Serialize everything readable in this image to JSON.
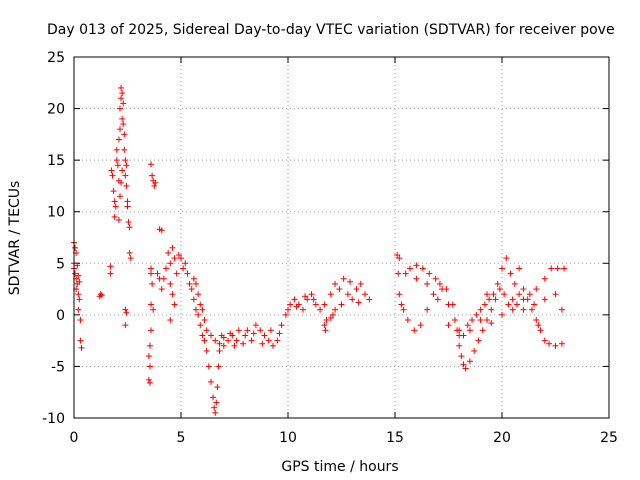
{
  "chart_data": {
    "type": "scatter",
    "title": "Day 013 of 2025, Sidereal Day-to-day VTEC variation (SDTVAR) for receiver pove",
    "xlabel": "GPS time / hours",
    "ylabel": "SDTVAR / TECUs",
    "xlim": [
      0,
      25
    ],
    "ylim": [
      -10,
      25
    ],
    "xticks": [
      0,
      5,
      10,
      15,
      20,
      25
    ],
    "yticks": [
      -10,
      -5,
      0,
      5,
      10,
      15,
      20,
      25
    ],
    "grid": true,
    "marker": "+",
    "color": "#ff0000",
    "series": [
      {
        "name": "SDTVAR",
        "points": [
          [
            0.0,
            7.0
          ],
          [
            0.05,
            6.5
          ],
          [
            0.1,
            6.0
          ],
          [
            0.0,
            5.0
          ],
          [
            0.05,
            4.0
          ],
          [
            0.1,
            3.5
          ],
          [
            0.15,
            3.0
          ],
          [
            0.1,
            2.5
          ],
          [
            0.2,
            2.0
          ],
          [
            0.25,
            1.5
          ],
          [
            0.2,
            0.5
          ],
          [
            0.3,
            -0.5
          ],
          [
            0.3,
            -2.5
          ],
          [
            0.35,
            -3.2
          ],
          [
            0.0,
            4.5
          ],
          [
            0.15,
            4.8
          ],
          [
            0.2,
            3.8
          ],
          [
            0.25,
            3.2
          ],
          [
            1.2,
            1.8
          ],
          [
            1.25,
            2.0
          ],
          [
            1.3,
            1.9
          ],
          [
            1.7,
            4.7
          ],
          [
            1.7,
            4.0
          ],
          [
            1.75,
            14.0
          ],
          [
            1.8,
            13.5
          ],
          [
            1.85,
            12.0
          ],
          [
            1.9,
            11.0
          ],
          [
            1.9,
            9.5
          ],
          [
            1.95,
            10.5
          ],
          [
            2.0,
            15.0
          ],
          [
            2.0,
            16.0
          ],
          [
            2.05,
            14.5
          ],
          [
            2.1,
            13.0
          ],
          [
            2.1,
            17.0
          ],
          [
            2.15,
            18.0
          ],
          [
            2.15,
            20.0
          ],
          [
            2.2,
            21.0
          ],
          [
            2.2,
            22.0
          ],
          [
            2.25,
            21.5
          ],
          [
            2.25,
            19.0
          ],
          [
            2.3,
            20.5
          ],
          [
            2.3,
            18.5
          ],
          [
            2.35,
            17.5
          ],
          [
            2.35,
            16.0
          ],
          [
            2.4,
            15.0
          ],
          [
            2.4,
            13.5
          ],
          [
            2.45,
            14.5
          ],
          [
            2.45,
            12.5
          ],
          [
            2.5,
            11.0
          ],
          [
            2.5,
            10.5
          ],
          [
            2.55,
            9.0
          ],
          [
            2.6,
            8.5
          ],
          [
            2.6,
            6.0
          ],
          [
            2.65,
            5.5
          ],
          [
            2.1,
            9.2
          ],
          [
            2.15,
            11.5
          ],
          [
            2.2,
            12.8
          ],
          [
            2.25,
            14.0
          ],
          [
            2.4,
            0.5
          ],
          [
            2.45,
            0.2
          ],
          [
            2.4,
            -1.0
          ],
          [
            3.6,
            14.6
          ],
          [
            3.65,
            13.5
          ],
          [
            3.7,
            13.0
          ],
          [
            3.75,
            12.5
          ],
          [
            3.8,
            12.8
          ],
          [
            3.6,
            4.5
          ],
          [
            3.6,
            4.0
          ],
          [
            3.65,
            3.0
          ],
          [
            3.6,
            1.0
          ],
          [
            3.6,
            -1.5
          ],
          [
            3.55,
            -3.0
          ],
          [
            3.5,
            -4.0
          ],
          [
            3.55,
            -5.0
          ],
          [
            3.5,
            -6.3
          ],
          [
            3.55,
            -6.6
          ],
          [
            3.7,
            0.5
          ],
          [
            4.0,
            8.3
          ],
          [
            4.1,
            8.2
          ],
          [
            3.9,
            4.0
          ],
          [
            4.0,
            3.5
          ],
          [
            4.1,
            2.5
          ],
          [
            4.2,
            3.5
          ],
          [
            4.3,
            4.5
          ],
          [
            4.4,
            6.0
          ],
          [
            4.5,
            5.0
          ],
          [
            4.6,
            6.5
          ],
          [
            4.7,
            5.5
          ],
          [
            4.8,
            4.0
          ],
          [
            4.5,
            3.0
          ],
          [
            4.6,
            2.0
          ],
          [
            4.7,
            1.0
          ],
          [
            4.5,
            -0.5
          ],
          [
            4.9,
            5.8
          ],
          [
            5.0,
            5.5
          ],
          [
            5.1,
            4.5
          ],
          [
            5.2,
            5.0
          ],
          [
            5.3,
            4.0
          ],
          [
            5.4,
            3.0
          ],
          [
            5.5,
            2.5
          ],
          [
            5.6,
            1.5
          ],
          [
            5.7,
            0.5
          ],
          [
            5.8,
            0.0
          ],
          [
            5.9,
            -1.0
          ],
          [
            6.0,
            -2.0
          ],
          [
            6.1,
            -2.5
          ],
          [
            6.2,
            -3.5
          ],
          [
            6.3,
            -5.0
          ],
          [
            6.4,
            -6.5
          ],
          [
            6.5,
            -8.0
          ],
          [
            6.55,
            -9.0
          ],
          [
            6.6,
            -9.5
          ],
          [
            6.65,
            -8.5
          ],
          [
            6.7,
            -7.0
          ],
          [
            6.75,
            -5.0
          ],
          [
            6.8,
            -3.5
          ],
          [
            6.9,
            -2.0
          ],
          [
            7.0,
            -3.0
          ],
          [
            7.2,
            -2.5
          ],
          [
            7.4,
            -2.0
          ],
          [
            7.5,
            -3.0
          ],
          [
            7.7,
            -1.5
          ],
          [
            8.0,
            -2.0
          ],
          [
            8.3,
            -2.5
          ],
          [
            8.5,
            -1.0
          ],
          [
            8.7,
            -1.5
          ],
          [
            8.9,
            -2.0
          ],
          [
            9.1,
            -2.5
          ],
          [
            9.3,
            -3.0
          ],
          [
            9.5,
            -2.5
          ],
          [
            9.7,
            -1.0
          ],
          [
            9.9,
            0.0
          ],
          [
            10.1,
            1.0
          ],
          [
            10.3,
            1.5
          ],
          [
            10.5,
            1.0
          ],
          [
            10.7,
            0.5
          ],
          [
            10.9,
            1.5
          ],
          [
            11.1,
            2.0
          ],
          [
            11.3,
            1.0
          ],
          [
            11.5,
            0.5
          ],
          [
            11.7,
            1.0
          ],
          [
            5.6,
            3.5
          ],
          [
            5.7,
            3.0
          ],
          [
            5.8,
            2.0
          ],
          [
            5.9,
            1.0
          ],
          [
            6.0,
            0.5
          ],
          [
            6.1,
            -0.5
          ],
          [
            6.2,
            -1.5
          ],
          [
            6.4,
            -2.0
          ],
          [
            6.6,
            -2.5
          ],
          [
            6.8,
            -2.8
          ],
          [
            7.0,
            -2.2
          ],
          [
            7.3,
            -1.8
          ],
          [
            7.6,
            -2.5
          ],
          [
            7.9,
            -2.8
          ],
          [
            8.1,
            -1.5
          ],
          [
            8.4,
            -1.8
          ],
          [
            8.8,
            -2.8
          ],
          [
            9.2,
            -1.5
          ],
          [
            9.6,
            -1.8
          ],
          [
            10.0,
            0.5
          ],
          [
            10.4,
            0.8
          ],
          [
            10.8,
            1.8
          ],
          [
            11.2,
            1.5
          ],
          [
            11.7,
            -1.0
          ],
          [
            11.75,
            -1.5
          ],
          [
            11.8,
            -0.5
          ],
          [
            12.1,
            0.0
          ],
          [
            12.2,
            0.5
          ],
          [
            12.0,
            -0.3
          ],
          [
            12.0,
            2.0
          ],
          [
            12.2,
            3.0
          ],
          [
            12.4,
            2.5
          ],
          [
            12.6,
            3.5
          ],
          [
            12.8,
            2.0
          ],
          [
            13.0,
            1.5
          ],
          [
            13.2,
            2.5
          ],
          [
            13.4,
            3.0
          ],
          [
            13.6,
            2.0
          ],
          [
            13.8,
            1.5
          ],
          [
            12.5,
            1.0
          ],
          [
            12.9,
            3.2
          ],
          [
            13.3,
            1.2
          ],
          [
            15.1,
            5.8
          ],
          [
            15.2,
            5.5
          ],
          [
            15.15,
            4.0
          ],
          [
            15.2,
            2.0
          ],
          [
            15.3,
            1.0
          ],
          [
            15.5,
            4.0
          ],
          [
            15.7,
            4.5
          ],
          [
            16.0,
            4.8
          ],
          [
            16.3,
            4.5
          ],
          [
            16.6,
            4.0
          ],
          [
            16.9,
            3.5
          ],
          [
            17.2,
            2.5
          ],
          [
            17.5,
            1.0
          ],
          [
            17.8,
            -0.5
          ],
          [
            18.0,
            -1.5
          ],
          [
            18.2,
            -2.0
          ],
          [
            18.4,
            -1.0
          ],
          [
            18.6,
            -0.5
          ],
          [
            18.8,
            0.0
          ],
          [
            19.0,
            0.5
          ],
          [
            19.2,
            1.0
          ],
          [
            19.4,
            1.5
          ],
          [
            19.6,
            2.0
          ],
          [
            19.8,
            3.0
          ],
          [
            20.0,
            4.5
          ],
          [
            20.2,
            5.5
          ],
          [
            20.4,
            4.0
          ],
          [
            20.6,
            3.0
          ],
          [
            20.8,
            2.0
          ],
          [
            21.0,
            1.5
          ],
          [
            21.3,
            2.0
          ],
          [
            21.6,
            2.5
          ],
          [
            22.0,
            3.5
          ],
          [
            22.3,
            4.5
          ],
          [
            22.6,
            4.5
          ],
          [
            22.9,
            4.5
          ],
          [
            15.4,
            0.5
          ],
          [
            15.6,
            -0.5
          ],
          [
            15.9,
            -1.5
          ],
          [
            16.2,
            -1.0
          ],
          [
            16.5,
            0.5
          ],
          [
            16.8,
            2.0
          ],
          [
            17.1,
            3.0
          ],
          [
            17.4,
            2.5
          ],
          [
            17.7,
            1.0
          ],
          [
            17.9,
            -1.5
          ],
          [
            18.0,
            -3.0
          ],
          [
            18.1,
            -4.0
          ],
          [
            18.2,
            -4.8
          ],
          [
            18.3,
            -5.2
          ],
          [
            18.5,
            -4.5
          ],
          [
            18.7,
            -3.5
          ],
          [
            18.9,
            -2.5
          ],
          [
            19.1,
            -1.5
          ],
          [
            19.3,
            -0.5
          ],
          [
            19.5,
            0.5
          ],
          [
            19.7,
            1.5
          ],
          [
            19.9,
            2.5
          ],
          [
            20.1,
            2.0
          ],
          [
            20.3,
            1.0
          ],
          [
            20.5,
            0.5
          ],
          [
            20.7,
            1.0
          ],
          [
            21.0,
            2.5
          ],
          [
            21.2,
            1.5
          ],
          [
            21.4,
            0.5
          ],
          [
            21.6,
            -0.5
          ],
          [
            21.8,
            -1.5
          ],
          [
            22.0,
            -2.5
          ],
          [
            22.2,
            -2.8
          ],
          [
            22.5,
            -3.0
          ],
          [
            22.8,
            -2.8
          ],
          [
            16.0,
            3.5
          ],
          [
            16.5,
            3.0
          ],
          [
            17.0,
            1.5
          ],
          [
            17.5,
            -1.0
          ],
          [
            18.0,
            -2.0
          ],
          [
            18.5,
            -1.5
          ],
          [
            19.0,
            -0.5
          ],
          [
            19.5,
            -0.8
          ],
          [
            20.0,
            0.0
          ],
          [
            20.5,
            1.5
          ],
          [
            21.0,
            0.5
          ],
          [
            21.5,
            1.0
          ],
          [
            22.0,
            1.5
          ],
          [
            22.5,
            2.0
          ],
          [
            22.8,
            0.5
          ],
          [
            21.7,
            -1.0
          ],
          [
            19.3,
            2.0
          ],
          [
            20.8,
            4.5
          ]
        ]
      }
    ]
  }
}
